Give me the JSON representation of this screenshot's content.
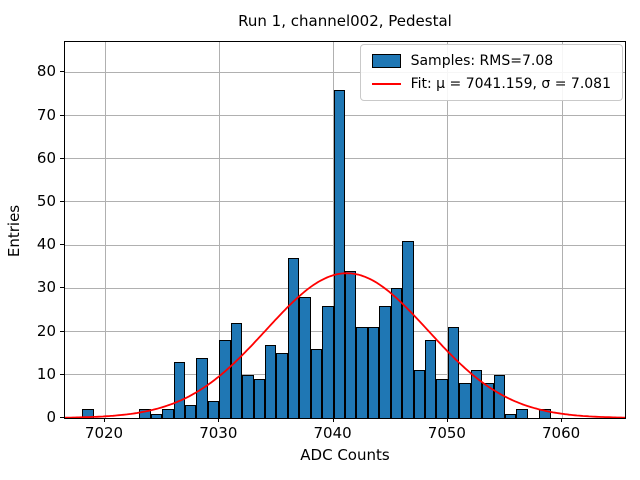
{
  "title": "Run 1, channel002, Pedestal",
  "xlabel": "ADC Counts",
  "ylabel": "Entries",
  "legend": {
    "samples_label": "Samples: RMS=7.08",
    "fit_label": "Fit: μ = 7041.159, σ = 7.081"
  },
  "colors": {
    "background": "#ffffff",
    "bar_fill": "#1f77b4",
    "bar_edge": "#000000",
    "fit_line": "#ff0000",
    "grid": "#b0b0b0",
    "text": "#000000"
  },
  "chart_data": {
    "type": "bar",
    "subtype": "histogram-with-gaussian-fit",
    "title": "Run 1, channel002, Pedestal",
    "xlabel": "ADC Counts",
    "ylabel": "Entries",
    "legend": [
      "Samples: RMS=7.08",
      "Fit: μ = 7041.159, σ = 7.081"
    ],
    "legend_position": "upper right",
    "grid": true,
    "bin_width": 1,
    "bin_start": [
      7018,
      7019,
      7020,
      7021,
      7022,
      7023,
      7024,
      7025,
      7026,
      7027,
      7028,
      7029,
      7030,
      7031,
      7032,
      7033,
      7034,
      7035,
      7036,
      7037,
      7038,
      7039,
      7040,
      7041,
      7042,
      7043,
      7044,
      7045,
      7046,
      7047,
      7048,
      7049,
      7050,
      7051,
      7052,
      7053,
      7054,
      7055,
      7056,
      7057,
      7058
    ],
    "counts": [
      2,
      0,
      0,
      0,
      0,
      2,
      1,
      2,
      13,
      3,
      14,
      4,
      18,
      22,
      10,
      9,
      17,
      15,
      37,
      28,
      16,
      26,
      76,
      34,
      21,
      21,
      26,
      30,
      41,
      11,
      18,
      9,
      21,
      8,
      11,
      8,
      10,
      1,
      2,
      0,
      2
    ],
    "fit": {
      "mu": 7041.159,
      "sigma": 7.081,
      "peak": 33.5
    },
    "xlim": [
      7016.5,
      7065.5
    ],
    "ylim": [
      0,
      87
    ],
    "xticks": [
      7020,
      7030,
      7040,
      7050,
      7060
    ],
    "yticks": [
      0,
      10,
      20,
      30,
      40,
      50,
      60,
      70,
      80
    ]
  }
}
